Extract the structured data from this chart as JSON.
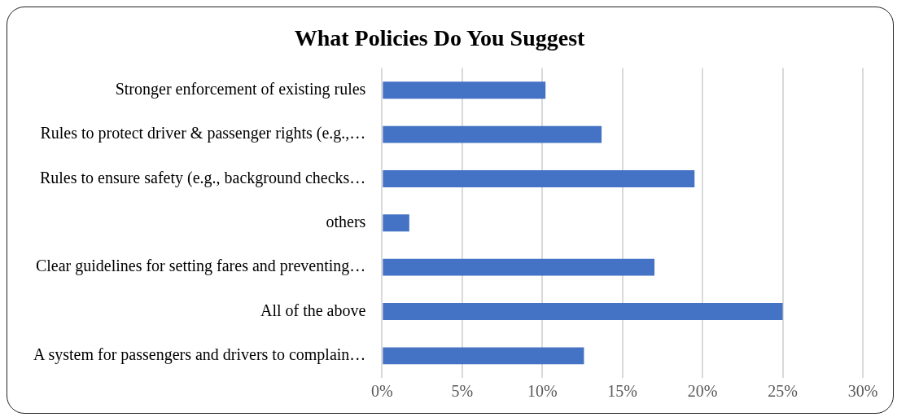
{
  "chart_data": {
    "type": "bar",
    "orientation": "horizontal",
    "title": "What Policies Do You Suggest",
    "categories": [
      "Stronger enforcement of existing rules",
      "Rules to protect driver & passenger rights (e.g.,…",
      "Rules to ensure safety (e.g., background checks…",
      "others",
      "Clear guidelines for setting fares and preventing…",
      "All of the above",
      "A system for passengers and drivers to complain…"
    ],
    "values": [
      10.2,
      13.7,
      19.5,
      1.7,
      17.0,
      25.0,
      12.6
    ],
    "color": "#4472c4",
    "xlim": [
      0,
      30
    ],
    "xticks": [
      {
        "value": 0,
        "label": "0%"
      },
      {
        "value": 5,
        "label": "5%"
      },
      {
        "value": 10,
        "label": "10%"
      },
      {
        "value": 15,
        "label": "15%"
      },
      {
        "value": 20,
        "label": "20%"
      },
      {
        "value": 25,
        "label": "25%"
      },
      {
        "value": 30,
        "label": "30%"
      }
    ],
    "grid": "x",
    "legend": false
  }
}
